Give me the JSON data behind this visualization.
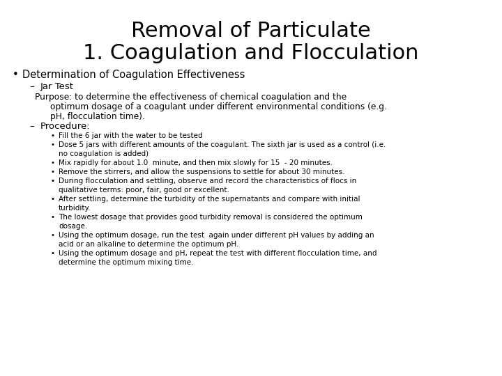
{
  "title_line1": "Removal of Particulate",
  "title_line2": "1. Coagulation and Flocculation",
  "background_color": "#ffffff",
  "text_color": "#000000",
  "title_fontsize": 22,
  "fs_b1": 10.5,
  "fs_b2": 9.5,
  "fs_b3": 7.5,
  "fs_purpose": 8.8,
  "content": [
    {
      "type": "bullet1",
      "text": "Determination of Coagulation Effectiveness"
    },
    {
      "type": "bullet2_dash",
      "text": "Jar Test"
    },
    {
      "type": "purpose_line",
      "text": "Purpose: to determine the effectiveness of chemical coagulation and the",
      "indent": 0
    },
    {
      "type": "purpose_line",
      "text": "optimum dosage of a coagulant under different environmental conditions (e.g.",
      "indent": 1
    },
    {
      "type": "purpose_line",
      "text": "pH, flocculation time).",
      "indent": 1
    },
    {
      "type": "bullet2_dash",
      "text": "Procedure:"
    },
    {
      "type": "bullet3",
      "text": "Fill the 6 jar with the water to be tested"
    },
    {
      "type": "bullet3",
      "text": "Dose 5 jars with different amounts of the coagulant. The sixth jar is used as a control (i.e."
    },
    {
      "type": "bullet3_cont",
      "text": "no coagulation is added)"
    },
    {
      "type": "bullet3",
      "text": "Mix rapidly for about 1.0  minute, and then mix slowly for 15  - 20 minutes."
    },
    {
      "type": "bullet3",
      "text": "Remove the stirrers, and allow the suspensions to settle for about 30 minutes."
    },
    {
      "type": "bullet3",
      "text": "During flocculation and settling, observe and record the characteristics of flocs in"
    },
    {
      "type": "bullet3_cont",
      "text": "qualitative terms: poor, fair, good or excellent."
    },
    {
      "type": "bullet3",
      "text": "After settling, determine the turbidity of the supernatants and compare with initial"
    },
    {
      "type": "bullet3_cont",
      "text": "turbidity."
    },
    {
      "type": "bullet3",
      "text": "The lowest dosage that provides good turbidity removal is considered the optimum"
    },
    {
      "type": "bullet3_cont",
      "text": "dosage."
    },
    {
      "type": "bullet3",
      "text": "Using the optimum dosage, run the test  again under different pH values by adding an"
    },
    {
      "type": "bullet3_cont",
      "text": "acid or an alkaline to determine the optimum pH."
    },
    {
      "type": "bullet3",
      "text": "Using the optimum dosage and pH, repeat the test with different flocculation time, and"
    },
    {
      "type": "bullet3_cont",
      "text": "determine the optimum mixing time."
    }
  ]
}
